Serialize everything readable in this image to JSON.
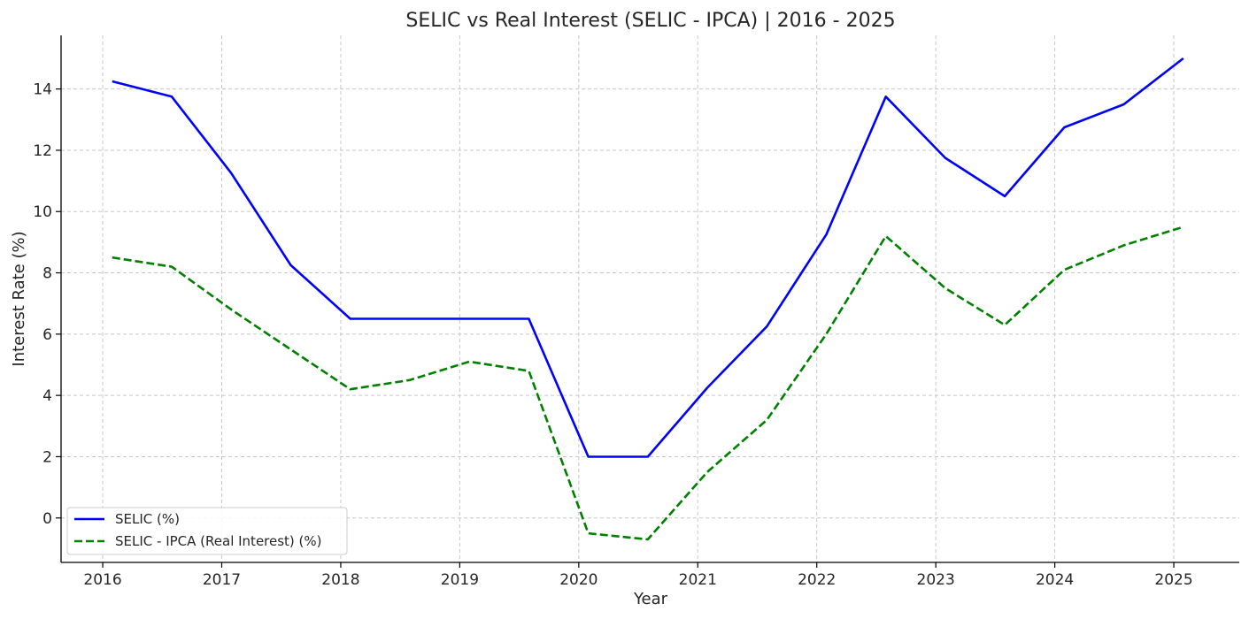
{
  "chart_data": {
    "type": "line",
    "title": "SELIC vs Real Interest (SELIC - IPCA) | 2016 - 2025",
    "xlabel": "Year",
    "ylabel": "Interest Rate (%)",
    "xlim": [
      2015.65,
      2025.55
    ],
    "ylim": [
      -1.45,
      15.75
    ],
    "xticks": [
      2016,
      2017,
      2018,
      2019,
      2020,
      2021,
      2022,
      2023,
      2024,
      2025
    ],
    "yticks": [
      0,
      2,
      4,
      6,
      8,
      10,
      12,
      14
    ],
    "grid": true,
    "legend_position": "lower-left",
    "x": [
      2016.08,
      2016.58,
      2017.08,
      2017.58,
      2018.08,
      2018.58,
      2019.08,
      2019.58,
      2020.08,
      2020.58,
      2021.08,
      2021.58,
      2022.08,
      2022.58,
      2023.08,
      2023.58,
      2024.08,
      2024.58,
      2025.08
    ],
    "series": [
      {
        "name": "SELIC (%)",
        "color": "#0000ff",
        "style": "solid",
        "values": [
          14.25,
          13.75,
          11.25,
          8.25,
          6.5,
          6.5,
          6.5,
          6.5,
          2.0,
          2.0,
          4.25,
          6.25,
          9.25,
          13.75,
          11.75,
          10.5,
          12.75,
          13.5,
          15.0
        ]
      },
      {
        "name": "SELIC - IPCA (Real Interest) (%)",
        "color": "#008000",
        "style": "dashed",
        "values": [
          8.5,
          8.2,
          6.8,
          5.5,
          4.2,
          4.5,
          5.1,
          4.8,
          -0.5,
          -0.7,
          1.5,
          3.2,
          6.0,
          9.2,
          7.5,
          6.3,
          8.1,
          8.9,
          9.5
        ]
      }
    ]
  }
}
